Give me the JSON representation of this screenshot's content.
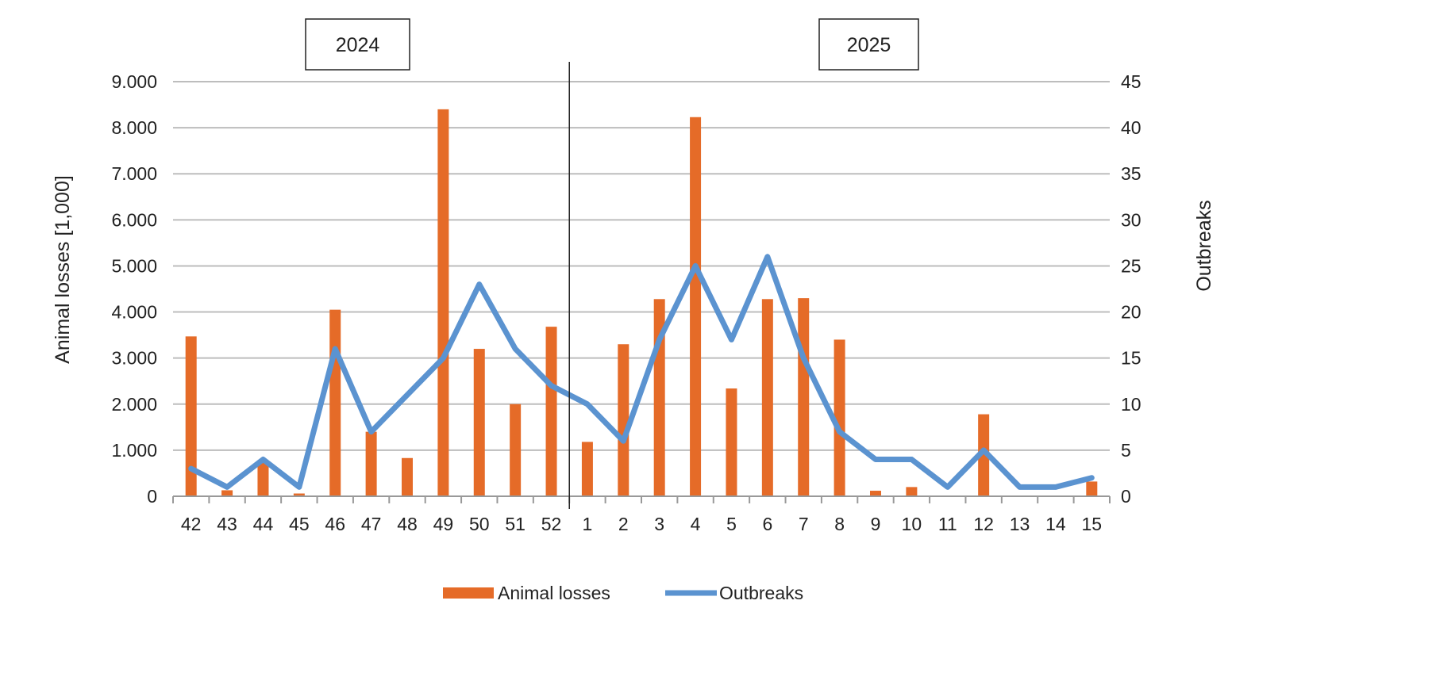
{
  "chart_data": {
    "type": "bar+line",
    "categories": [
      "42",
      "43",
      "44",
      "45",
      "46",
      "47",
      "48",
      "49",
      "50",
      "51",
      "52",
      "1",
      "2",
      "3",
      "4",
      "5",
      "6",
      "7",
      "8",
      "9",
      "10",
      "11",
      "12",
      "13",
      "14",
      "15"
    ],
    "year_labels": [
      {
        "text": "2024",
        "from_index": 0,
        "to_index": 10
      },
      {
        "text": "2025",
        "from_index": 11,
        "to_index": 25
      }
    ],
    "series": [
      {
        "name": "Animal losses",
        "type": "bar",
        "axis": "left",
        "color": "#E56B28",
        "values": [
          3470,
          130,
          750,
          60,
          4050,
          1400,
          830,
          8400,
          3200,
          2000,
          3680,
          1180,
          3300,
          4280,
          8230,
          2340,
          4280,
          4300,
          3400,
          120,
          200,
          0,
          1780,
          0,
          0,
          320
        ]
      },
      {
        "name": "Outbreaks",
        "type": "line",
        "axis": "right",
        "color": "#5B93D0",
        "values": [
          3,
          1,
          4,
          1,
          16,
          7,
          11,
          15,
          23,
          16,
          12,
          10,
          6,
          17,
          25,
          17,
          26,
          15,
          7,
          4,
          4,
          1,
          5,
          1,
          1,
          2
        ]
      }
    ],
    "ylabel": "Animal losses [1,000]",
    "y2label": "Outbreaks",
    "ylim": [
      0,
      9000
    ],
    "y2lim": [
      0,
      45
    ],
    "yticks": [
      "0",
      "1.000",
      "2.000",
      "3.000",
      "4.000",
      "5.000",
      "6.000",
      "7.000",
      "8.000",
      "9.000"
    ],
    "y2ticks": [
      "0",
      "5",
      "10",
      "15",
      "20",
      "25",
      "30",
      "35",
      "40",
      "45"
    ],
    "grid": true,
    "legend_position": "bottom"
  }
}
